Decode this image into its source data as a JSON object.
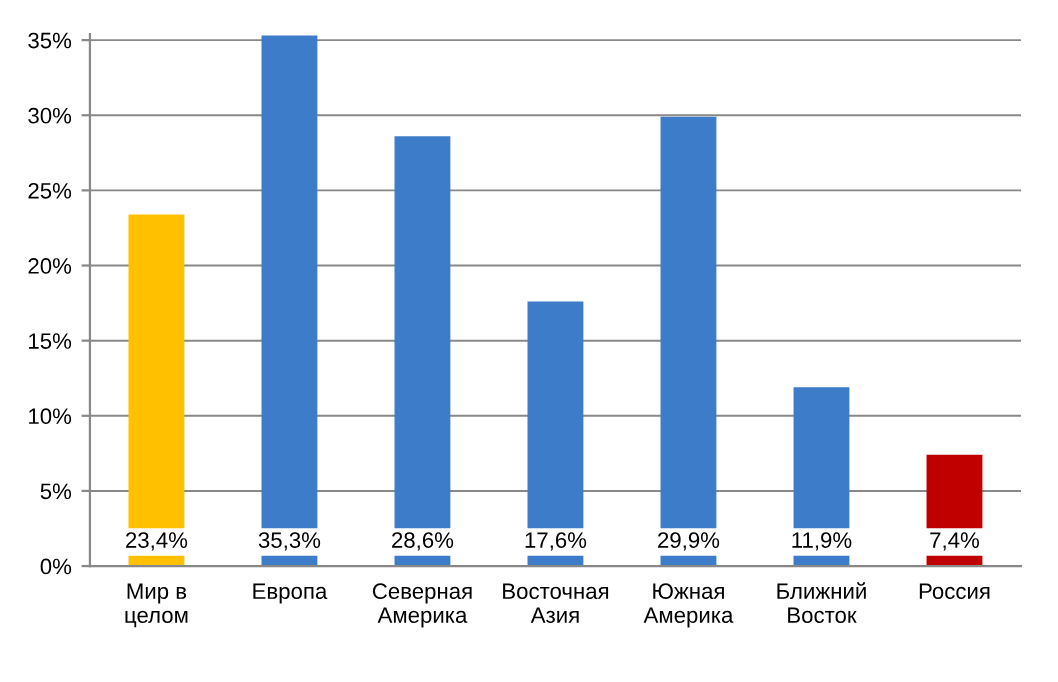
{
  "chart_data": {
    "type": "bar",
    "categories": [
      "Мир в\nцелом",
      "Европа",
      "Северная\nАмерика",
      "Восточная\nАзия",
      "Южная\nАмерика",
      "Ближний\nВосток",
      "Россия"
    ],
    "values": [
      23.4,
      35.3,
      28.6,
      17.6,
      29.9,
      11.9,
      7.4
    ],
    "colors": [
      "#ffc000",
      "#3d7cc9",
      "#3d7cc9",
      "#3d7cc9",
      "#3d7cc9",
      "#3d7cc9",
      "#c00000"
    ],
    "value_labels": [
      "23,4%",
      "35,3%",
      "28,6%",
      "17,6%",
      "29,9%",
      "11,9%",
      "7,4%"
    ],
    "ylim": [
      0,
      35.4
    ],
    "yticks": [
      {
        "value": 0,
        "label": "0%"
      },
      {
        "value": 5,
        "label": "5%"
      },
      {
        "value": 10,
        "label": "10%"
      },
      {
        "value": 15,
        "label": "15%"
      },
      {
        "value": 20,
        "label": "20%"
      },
      {
        "value": 25,
        "label": "25%"
      },
      {
        "value": 30,
        "label": "30%"
      },
      {
        "value": 35,
        "label": "35%"
      }
    ],
    "grid": "y"
  }
}
